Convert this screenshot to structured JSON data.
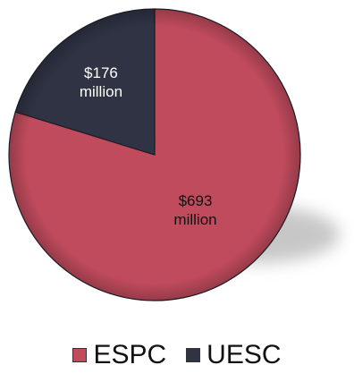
{
  "chart_data": {
    "type": "pie",
    "title": "",
    "series": [
      {
        "name": "ESPC",
        "value": 693,
        "label_lines": [
          "$693",
          "million"
        ],
        "color": "#c04b5d",
        "label_color": "#111111"
      },
      {
        "name": "UESC",
        "value": 176,
        "label_lines": [
          "$176",
          "million"
        ],
        "color": "#2f3344",
        "label_color": "#ffffff"
      }
    ],
    "start_angle_deg": 0,
    "direction": "clockwise",
    "legend_position": "bottom"
  },
  "legend": [
    {
      "label": "ESPC",
      "color": "#c04b5d"
    },
    {
      "label": "UESC",
      "color": "#2f3344"
    }
  ]
}
